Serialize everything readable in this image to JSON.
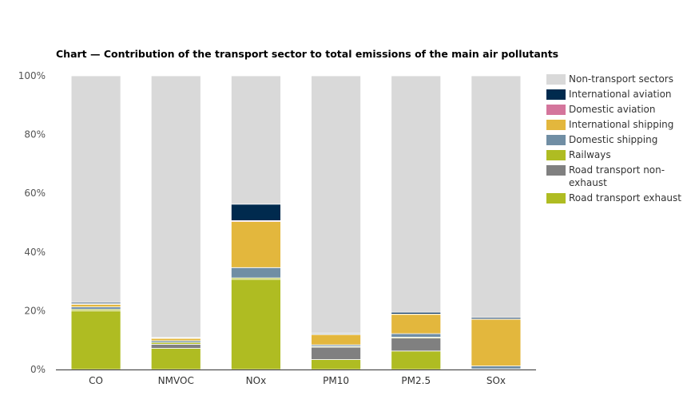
{
  "chart_data": {
    "type": "bar",
    "stacked": true,
    "title": "Chart — Contribution of the transport sector to total emissions of the main air pollutants",
    "xlabel": "",
    "ylabel": "",
    "ylim": [
      0,
      100
    ],
    "yticks": [
      0,
      20,
      40,
      60,
      80,
      100
    ],
    "ytick_labels": [
      "0%",
      "20%",
      "40%",
      "60%",
      "80%",
      "100%"
    ],
    "categories": [
      "CO",
      "NMVOC",
      "NOx",
      "PM10",
      "PM2.5",
      "SOx"
    ],
    "series": [
      {
        "name": "Road transport exhaust",
        "color": "#AFBC22",
        "values": [
          20.0,
          7.2,
          30.7,
          3.4,
          6.3,
          0.1
        ]
      },
      {
        "name": "Road transport non-exhaust",
        "color": "#808080",
        "values": [
          0.0,
          1.4,
          0.0,
          4.2,
          4.4,
          0.0
        ]
      },
      {
        "name": "Railways",
        "color": "#AFBC22",
        "values": [
          0.5,
          0.6,
          0.5,
          0.3,
          0.3,
          0.1
        ]
      },
      {
        "name": "Domestic shipping",
        "color": "#708EA4",
        "values": [
          0.8,
          0.6,
          3.5,
          0.5,
          1.2,
          1.0
        ]
      },
      {
        "name": "International shipping",
        "color": "#E3B73D",
        "values": [
          0.9,
          0.8,
          15.7,
          3.5,
          6.6,
          15.9
        ]
      },
      {
        "name": "Domestic aviation",
        "color": "#D4759C",
        "values": [
          0.2,
          0.1,
          0.3,
          0.1,
          0.1,
          0.1
        ]
      },
      {
        "name": "International aviation",
        "color": "#002A4E",
        "values": [
          0.4,
          0.2,
          5.6,
          0.3,
          0.6,
          0.5
        ]
      },
      {
        "name": "Non-transport sectors",
        "color": "#D9D9D9",
        "values": [
          77.2,
          89.1,
          43.7,
          87.7,
          80.5,
          82.3
        ]
      }
    ],
    "legend": {
      "placement": "right",
      "items": [
        {
          "label": "Non-transport sectors",
          "color": "#D9D9D9"
        },
        {
          "label": "International aviation",
          "color": "#002A4E"
        },
        {
          "label": "Domestic aviation",
          "color": "#D4759C"
        },
        {
          "label": "International shipping",
          "color": "#E3B73D"
        },
        {
          "label": "Domestic shipping",
          "color": "#708EA4"
        },
        {
          "label": "Railways",
          "color": "#AFBC22"
        },
        {
          "label": "Road transport non-exhaust",
          "color": "#808080"
        },
        {
          "label": "Road transport exhaust",
          "color": "#AFBC22"
        }
      ]
    }
  }
}
